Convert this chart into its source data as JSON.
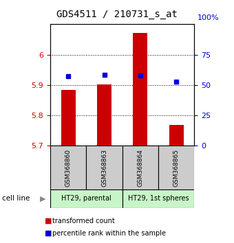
{
  "title": "GDS4511 / 210731_s_at",
  "samples": [
    "GSM368860",
    "GSM368863",
    "GSM368864",
    "GSM368865"
  ],
  "bar_values": [
    5.885,
    5.902,
    6.072,
    5.768
  ],
  "dot_values": [
    5.93,
    5.933,
    5.932,
    5.912
  ],
  "bar_bottom": 5.7,
  "ylim_left": [
    5.7,
    6.1
  ],
  "ylim_right": [
    0,
    100
  ],
  "yticks_left": [
    5.7,
    5.8,
    5.9,
    6.0
  ],
  "ytick_labels_left": [
    "5.7",
    "5.8",
    "5.9",
    "6"
  ],
  "yticks_right": [
    0,
    25,
    50,
    75
  ],
  "ytick_labels_right": [
    "0",
    "25",
    "50",
    "75"
  ],
  "cell_lines": [
    "HT29, parental",
    "HT29, 1st spheres"
  ],
  "cell_line_colors": [
    "#c8f5c8",
    "#c8f5c8"
  ],
  "bar_color": "#cc0000",
  "dot_color": "#0000cc",
  "tick_color_left": "#cc0000",
  "tick_color_right": "#0000cc",
  "legend_labels": [
    "transformed count",
    "percentile rank within the sample"
  ],
  "background_color": "#ffffff",
  "dotted_values": [
    5.8,
    5.9,
    6.0
  ],
  "sample_area_color": "#cccccc",
  "bar_width": 0.4
}
